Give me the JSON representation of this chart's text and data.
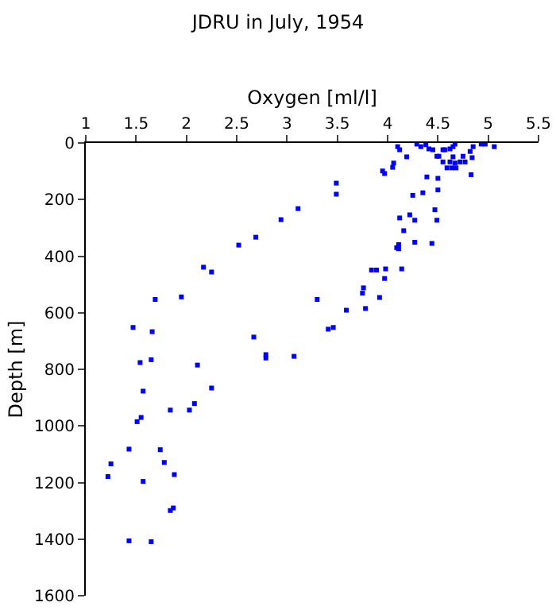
{
  "chart_data": {
    "type": "scatter",
    "title": "JDRU in July, 1954",
    "xlabel": "Oxygen [ml/l]",
    "ylabel": "Depth [m]",
    "xlim": [
      1,
      5.5
    ],
    "xticks": [
      1,
      1.5,
      2,
      2.5,
      3,
      3.5,
      4,
      4.5,
      5,
      5.5
    ],
    "ylim": [
      1600,
      0
    ],
    "yticks": [
      0,
      200,
      400,
      600,
      800,
      1000,
      1200,
      1400,
      1600
    ],
    "grid": false,
    "marker": "square",
    "series": [
      {
        "color": "#0000ff",
        "x": [
          4.1,
          4.12,
          4.19,
          4.29,
          4.33,
          4.38,
          4.41,
          4.45,
          4.49,
          4.51,
          4.55,
          4.57,
          4.62,
          4.65,
          4.67,
          4.65,
          4.55,
          4.59,
          4.62,
          4.64,
          4.68,
          4.67,
          4.72,
          4.75,
          4.77,
          4.82,
          4.85,
          4.84,
          4.83,
          4.93,
          4.97,
          5.06,
          3.95,
          3.97,
          4.05,
          4.06,
          4.39,
          4.5,
          4.5,
          4.35,
          4.25,
          4.47,
          4.22,
          4.27,
          4.12,
          4.49,
          4.16,
          4.27,
          4.44,
          4.11,
          4.09,
          4.11,
          3.84,
          3.89,
          3.98,
          4.14,
          3.97,
          3.76,
          3.75,
          3.92,
          3.49,
          3.49,
          3.11,
          2.94,
          2.69,
          2.52,
          2.17,
          2.25,
          1.69,
          1.95,
          3.3,
          3.59,
          3.78,
          1.47,
          1.66,
          2.67,
          3.41,
          3.46,
          2.79,
          2.79,
          3.07,
          1.54,
          1.65,
          2.11,
          1.57,
          2.25,
          1.84,
          2.03,
          2.08,
          1.51,
          1.55,
          1.43,
          1.74,
          1.25,
          1.78,
          1.22,
          1.57,
          1.88,
          1.84,
          1.87,
          1.43,
          1.65
        ],
        "values": [
          13,
          24,
          49,
          4,
          13,
          6,
          21,
          24,
          47,
          47,
          24,
          24,
          21,
          13,
          4,
          49,
          67,
          88,
          67,
          88,
          88,
          71,
          67,
          47,
          67,
          30,
          13,
          52,
          112,
          4,
          4,
          13,
          99,
          108,
          86,
          71,
          120,
          125,
          166,
          176,
          185,
          236,
          254,
          273,
          265,
          273,
          310,
          351,
          355,
          359,
          370,
          374,
          449,
          449,
          445,
          445,
          479,
          512,
          531,
          546,
          142,
          181,
          232,
          271,
          333,
          361,
          439,
          456,
          553,
          544,
          553,
          591,
          585,
          652,
          667,
          686,
          658,
          652,
          748,
          760,
          754,
          776,
          766,
          785,
          877,
          866,
          944,
          944,
          921,
          985,
          970,
          1082,
          1084,
          1134,
          1129,
          1179,
          1196,
          1172,
          1299,
          1290,
          1406,
          1409
        ]
      }
    ]
  }
}
